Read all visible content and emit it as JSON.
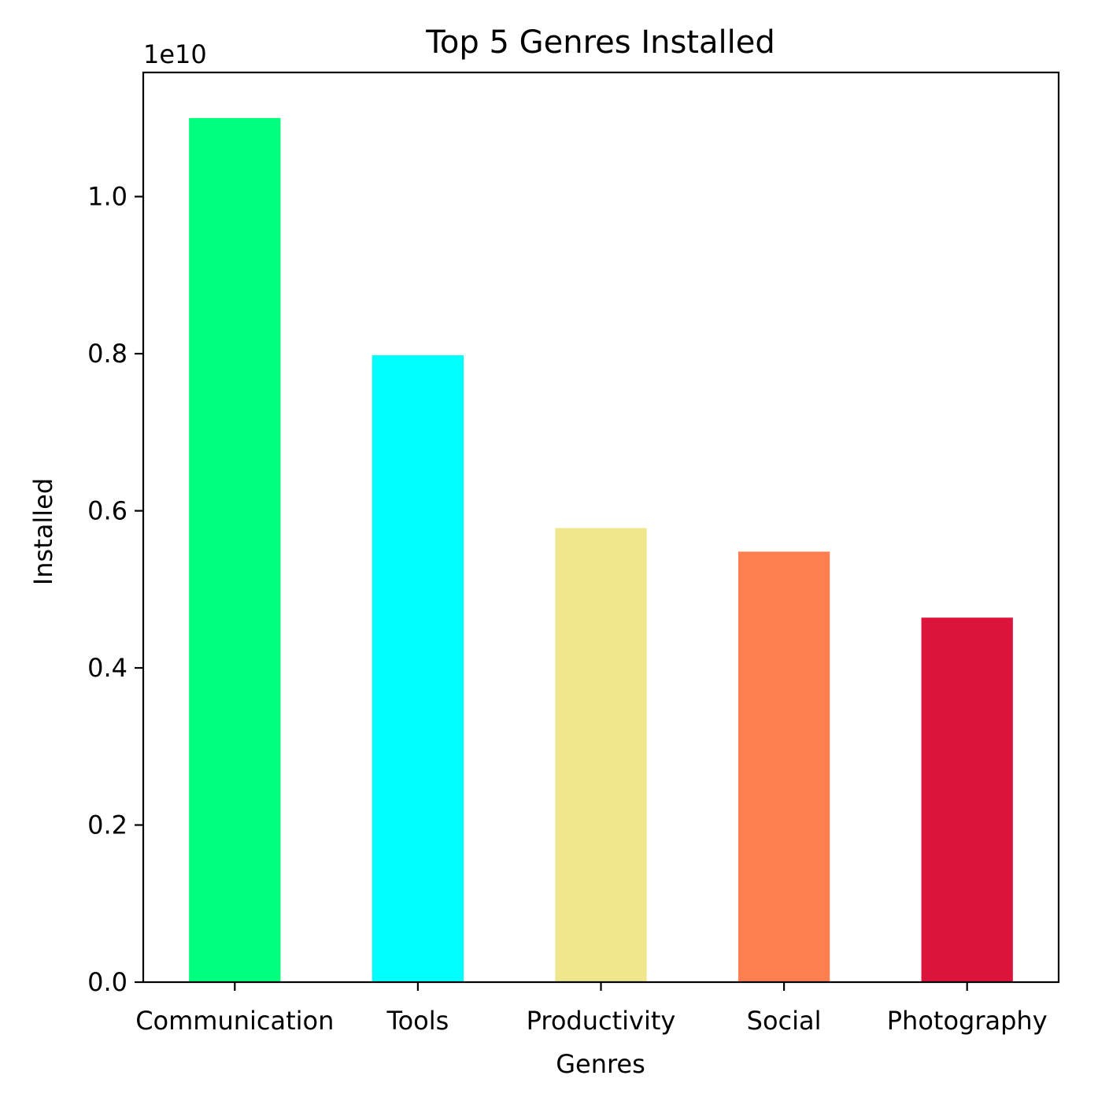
{
  "chart_data": {
    "type": "bar",
    "title": "Top 5 Genres Installed",
    "xlabel": "Genres",
    "ylabel": "Installed",
    "offset_label": "1e10",
    "categories": [
      "Communication",
      "Tools",
      "Productivity",
      "Social",
      "Photography"
    ],
    "values": [
      11000000000,
      7980000000,
      5780000000,
      5480000000,
      4640000000
    ],
    "colors": [
      "#00ff7f",
      "#00ffff",
      "#f0e68c",
      "#ff7f50",
      "#dc143c"
    ],
    "ylim": [
      0,
      11580000000
    ],
    "yticks": [
      0,
      2000000000,
      4000000000,
      6000000000,
      8000000000,
      10000000000
    ],
    "ytick_labels": [
      "0.0",
      "0.2",
      "0.4",
      "0.6",
      "0.8",
      "1.0"
    ],
    "grid": false,
    "legend": "none"
  }
}
